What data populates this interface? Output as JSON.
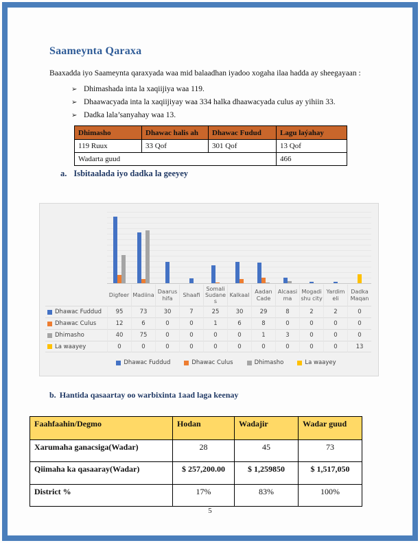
{
  "page": {
    "number": "5",
    "border_color": "#4a7ebb"
  },
  "title": "Saameynta Qaraxa",
  "intro": "Baaxadda iyo Saameynta qaraxyada waa mid balaadhan iyadoo xogaha ilaa hadda ay sheegayaan :",
  "bullet_glyph": "➢",
  "bullets": [
    "Dhimashada inta la xaqiijiya waa 119.",
    "Dhaawacyada inta la xaqiijiyay waa 334 halka dhaawacyada culus ay yihiin 33.",
    "Dadka lala’sanyahay waa 13."
  ],
  "summary_table": {
    "header_bg": "#c9662b",
    "headers": [
      "Dhimasho",
      "Dhawac halis ah",
      "Dhawac Fudud",
      "Lagu laýahay"
    ],
    "row": [
      "119 Ruux",
      "33 Qof",
      "301 Qof",
      "13 Qof"
    ],
    "total_label": "Wadarta guud",
    "total_value": "466"
  },
  "section_a": {
    "index": "a.",
    "text": "Isbitaalada iyo dadka la geeyey"
  },
  "chart_data": {
    "type": "bar",
    "title": "",
    "xlabel": "",
    "ylabel": "",
    "ylim": [
      0,
      110
    ],
    "grid": true,
    "legend_position": "bottom",
    "data_table_shown": true,
    "categories": [
      "Digfeer",
      "Madiina",
      "Daarus hifa",
      "Shaafi",
      "Somali Sudane s",
      "Kalkaal",
      "Aadan Cade",
      "Alcaasi ma",
      "Mogadi shu city",
      "Yardim eli",
      "Dadka Maqan"
    ],
    "series": [
      {
        "name": "Dhawac Fuddud",
        "color": "#4472c4",
        "values": [
          95,
          73,
          30,
          7,
          25,
          30,
          29,
          8,
          2,
          2,
          0
        ]
      },
      {
        "name": "Dhawac Culus",
        "color": "#ed7d31",
        "values": [
          12,
          6,
          0,
          0,
          1,
          6,
          8,
          0,
          0,
          0,
          0
        ]
      },
      {
        "name": "Dhimasho",
        "color": "#a5a5a5",
        "values": [
          40,
          75,
          0,
          0,
          0,
          0,
          1,
          3,
          0,
          0,
          0
        ]
      },
      {
        "name": "La waayey",
        "color": "#ffc000",
        "values": [
          0,
          0,
          0,
          0,
          0,
          0,
          0,
          0,
          0,
          0,
          13
        ]
      }
    ]
  },
  "section_b": {
    "index": "b.",
    "text": "Hantida qasaartay oo warbixinta 1aad laga keenay"
  },
  "damage_table": {
    "header_bg": "#ffd966",
    "headers": [
      "Faahfaahin/Degmo",
      "Hodan",
      "Wadajir",
      "Wadar guud"
    ],
    "rows": [
      {
        "label": "Xarumaha ganacsiga(Wadar)",
        "values": [
          "28",
          "45",
          "73"
        ]
      },
      {
        "label": "Qiimaha ka qasaaray(Wadar)",
        "values": [
          "$ 257,200.00",
          "$ 1,259850",
          "$ 1,517,050"
        ]
      },
      {
        "label": "District %",
        "values": [
          "17%",
          "83%",
          "100%"
        ]
      }
    ]
  }
}
